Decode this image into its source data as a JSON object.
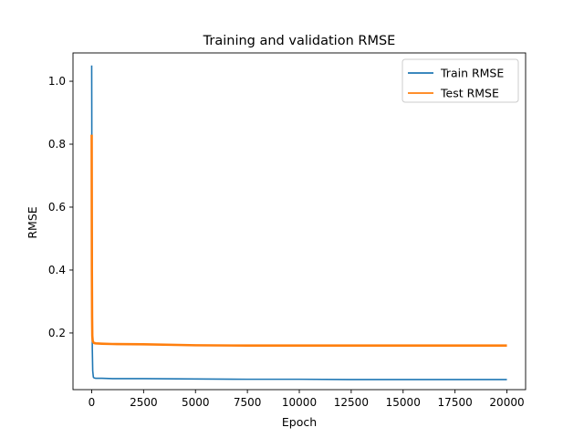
{
  "chart_data": {
    "type": "line",
    "title": "Training and validation RMSE",
    "xlabel": "Epoch",
    "ylabel": "RMSE",
    "xlim": [
      -900,
      20900
    ],
    "ylim": [
      0.02,
      1.09
    ],
    "x_ticks": [
      0,
      2500,
      5000,
      7500,
      10000,
      12500,
      15000,
      17500,
      20000
    ],
    "y_ticks": [
      0.2,
      0.4,
      0.6,
      0.8,
      1.0
    ],
    "x_tick_labels": [
      "0",
      "2500",
      "5000",
      "7500",
      "10000",
      "12500",
      "15000",
      "17500",
      "20000"
    ],
    "y_tick_labels": [
      "0.2",
      "0.4",
      "0.6",
      "0.8",
      "1.0"
    ],
    "grid": false,
    "legend_position": "top-right",
    "series": [
      {
        "name": "Train RMSE",
        "color": "#1f77b4",
        "x": [
          0,
          5,
          10,
          20,
          30,
          50,
          80,
          120,
          200,
          500,
          1000,
          2500,
          5000,
          7500,
          10000,
          12500,
          15000,
          17500,
          20000
        ],
        "y": [
          1.05,
          0.9,
          0.6,
          0.35,
          0.15,
          0.08,
          0.06,
          0.057,
          0.056,
          0.056,
          0.055,
          0.055,
          0.054,
          0.053,
          0.053,
          0.052,
          0.052,
          0.052,
          0.052
        ]
      },
      {
        "name": "Test RMSE",
        "color": "#ff7f0e",
        "x": [
          0,
          5,
          10,
          20,
          30,
          50,
          80,
          120,
          200,
          500,
          1000,
          2500,
          5000,
          7500,
          10000,
          12500,
          15000,
          17500,
          20000
        ],
        "y": [
          0.83,
          0.6,
          0.4,
          0.25,
          0.19,
          0.175,
          0.17,
          0.168,
          0.167,
          0.166,
          0.165,
          0.164,
          0.161,
          0.16,
          0.16,
          0.16,
          0.16,
          0.16,
          0.16
        ]
      }
    ]
  }
}
